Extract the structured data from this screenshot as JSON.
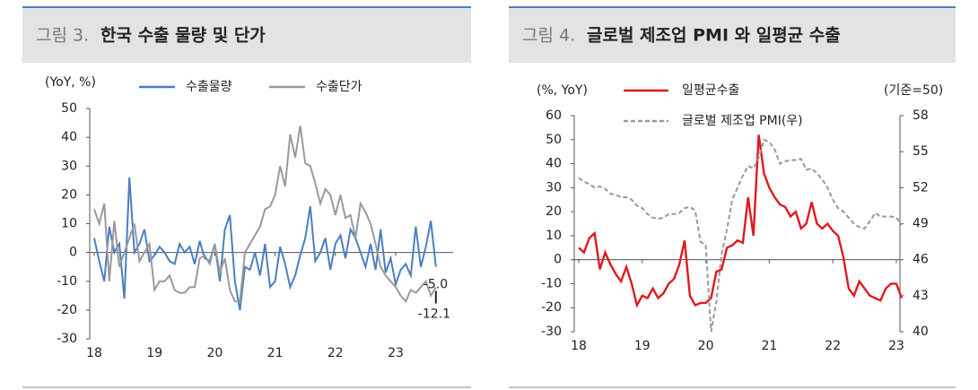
{
  "chart_data": [
    {
      "type": "line",
      "figure_label": "그림 3.",
      "title": "한국 수출 물량 및 단가",
      "y_label": "(YoY, %)",
      "categories": [
        "18",
        null,
        null,
        null,
        null,
        null,
        null,
        null,
        null,
        null,
        null,
        null,
        "19",
        null,
        null,
        null,
        null,
        null,
        null,
        null,
        null,
        null,
        null,
        null,
        "20",
        null,
        null,
        null,
        null,
        null,
        null,
        null,
        null,
        null,
        null,
        null,
        "21",
        null,
        null,
        null,
        null,
        null,
        null,
        null,
        null,
        null,
        null,
        null,
        "22",
        null,
        null,
        null,
        null,
        null,
        null,
        null,
        null,
        null,
        null,
        null,
        "23",
        null,
        null,
        null,
        null,
        null,
        null,
        null,
        null
      ],
      "series": [
        {
          "name": "수출물량",
          "color": "#4a7fc1",
          "values": [
            5,
            -3,
            -10,
            9,
            0,
            3,
            -16,
            26,
            0,
            3,
            8,
            -3,
            -1,
            2,
            0,
            -3,
            -4,
            3,
            0,
            2,
            -4,
            4,
            -2,
            -3,
            3,
            -10,
            8,
            13,
            -10,
            -20,
            -5,
            -6,
            0,
            -8,
            3,
            -12,
            -10,
            2,
            -4,
            -12,
            -8,
            -1,
            5,
            16,
            -3,
            0,
            5,
            -6,
            3,
            6,
            -2,
            8,
            5,
            0,
            -5,
            3,
            -6,
            8,
            -7,
            -2,
            -11,
            -6,
            -4,
            -8,
            9,
            -5,
            2,
            11,
            -5.0
          ]
        },
        {
          "name": "수출단가",
          "color": "#9a9a9a",
          "values": [
            15,
            10,
            17,
            -10,
            11,
            -5,
            0,
            5,
            10,
            -3,
            0,
            3,
            -13,
            -10,
            -10,
            -8,
            -13,
            -14,
            -14,
            -12,
            -12,
            -2,
            -1,
            -4,
            3,
            -7,
            -2,
            -13,
            -17,
            -17,
            0,
            3,
            6,
            9,
            15,
            16,
            20,
            30,
            23,
            41,
            33,
            44,
            31,
            30,
            24,
            17,
            22,
            20,
            13,
            20,
            12,
            13,
            5,
            17,
            14,
            10,
            3,
            -5,
            -8,
            -10,
            -12,
            -15,
            -17,
            -13,
            -14,
            -12,
            -10,
            -15,
            -12.1
          ]
        }
      ],
      "annotations": [
        "-5.0",
        "-12.1"
      ],
      "ylim": [
        -30,
        50
      ],
      "yticks": [
        -30,
        -20,
        -10,
        0,
        10,
        20,
        30,
        40,
        50
      ]
    },
    {
      "type": "line",
      "figure_label": "그림 4.",
      "title": "글로벌 제조업 PMI 와 일평균 수출",
      "y_label": "(%, YoY)",
      "y2_label": "(기준=50)",
      "categories": [
        "18",
        null,
        null,
        null,
        null,
        null,
        null,
        null,
        null,
        null,
        null,
        null,
        "19",
        null,
        null,
        null,
        null,
        null,
        null,
        null,
        null,
        null,
        null,
        null,
        "20",
        null,
        null,
        null,
        null,
        null,
        null,
        null,
        null,
        null,
        null,
        null,
        "21",
        null,
        null,
        null,
        null,
        null,
        null,
        null,
        null,
        null,
        null,
        null,
        "22",
        null,
        null,
        null,
        null,
        null,
        null,
        null,
        null,
        null,
        null,
        null,
        "23",
        null
      ],
      "series": [
        {
          "name": "일평균수출",
          "color": "#e0191e",
          "values": [
            5,
            3,
            9,
            11,
            -4,
            3,
            -2,
            -6,
            -9,
            -3,
            -10,
            -19,
            -15,
            -16,
            -12,
            -16,
            -14,
            -10,
            -8,
            -2,
            8,
            -15,
            -19,
            -18,
            -18,
            -16,
            -5,
            -4,
            5,
            6,
            8,
            7,
            26,
            10,
            52,
            36,
            30,
            26,
            23,
            22,
            18,
            20,
            13,
            15,
            24,
            15,
            13,
            15,
            12,
            10,
            1,
            -12,
            -15,
            -9,
            -12,
            -15,
            -16,
            -17,
            -12,
            -10,
            -10,
            -16
          ]
        },
        {
          "name": "글로벌 제조업 PMI(우)",
          "color": "#999999",
          "axis": "y2",
          "line_style": "dashed",
          "values": [
            52.8,
            52.5,
            52.3,
            52.0,
            52.1,
            51.9,
            51.5,
            51.4,
            51.2,
            51.2,
            51.0,
            50.5,
            50.3,
            49.8,
            49.5,
            49.4,
            49.5,
            49.8,
            49.8,
            49.9,
            50.3,
            50.4,
            50.1,
            47.5,
            47.2,
            40.0,
            42.5,
            46.5,
            48.5,
            51.0,
            52.0,
            53.0,
            53.8,
            53.6,
            54.5,
            56.0,
            55.8,
            55.2,
            54.0,
            54.2,
            54.3,
            54.3,
            54.4,
            53.5,
            53.6,
            53.2,
            52.7,
            52.0,
            51.0,
            50.3,
            50.0,
            49.5,
            49.0,
            48.7,
            48.6,
            49.2,
            49.9,
            49.6,
            49.6,
            49.6,
            49.5,
            48.9
          ]
        }
      ],
      "ylim": [
        -30,
        60
      ],
      "yticks": [
        -30,
        -20,
        -10,
        0,
        10,
        20,
        30,
        40,
        50,
        60
      ],
      "y2lim": [
        40,
        58
      ],
      "y2ticks": [
        40,
        43,
        46,
        49,
        52,
        55,
        58
      ]
    }
  ]
}
